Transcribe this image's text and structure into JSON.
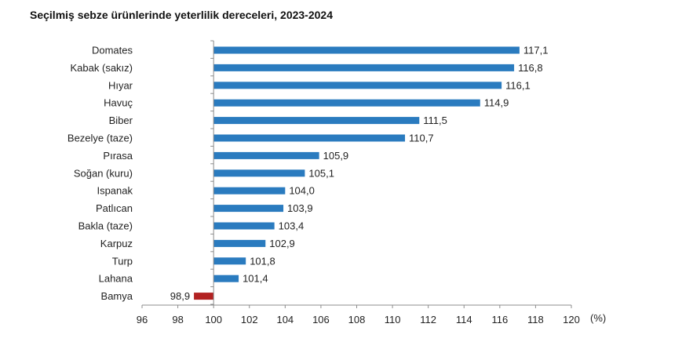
{
  "chart_data": {
    "type": "bar",
    "orientation": "horizontal",
    "title": "Seçilmiş sebze ürünlerinde yeterlilik dereceleri, 2023-2024",
    "xlabel": "",
    "ylabel": "",
    "unit_label": "(%)",
    "categories": [
      "Domates",
      "Kabak (sakız)",
      "Hıyar",
      "Havuç",
      "Biber",
      "Bezelye (taze)",
      "Pırasa",
      "Soğan (kuru)",
      "Ispanak",
      "Patlıcan",
      "Bakla (taze)",
      "Karpuz",
      "Turp",
      "Lahana",
      "Bamya"
    ],
    "values": [
      117.1,
      116.8,
      116.1,
      114.9,
      111.5,
      110.7,
      105.9,
      105.1,
      104.0,
      103.9,
      103.4,
      102.9,
      101.8,
      101.4,
      98.9
    ],
    "value_labels": [
      "117,1",
      "116,8",
      "116,1",
      "114,9",
      "111,5",
      "110,7",
      "105,9",
      "105,1",
      "104,0",
      "103,9",
      "103,4",
      "102,9",
      "101,8",
      "101,4",
      "98,9"
    ],
    "baseline": 100,
    "xlim": [
      96,
      120
    ],
    "xticks": [
      96,
      98,
      100,
      102,
      104,
      106,
      108,
      110,
      112,
      114,
      116,
      118,
      120
    ],
    "grid": false,
    "legend": "none",
    "colors": {
      "above_baseline": "#2a7bbf",
      "below_baseline": "#b22222",
      "axis": "#8c8c8c"
    }
  }
}
